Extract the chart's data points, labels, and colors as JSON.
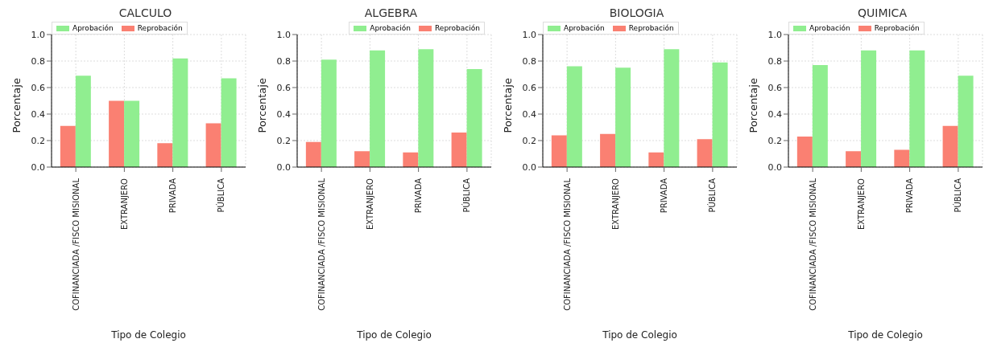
{
  "chart_data": [
    {
      "type": "bar",
      "title": "CALCULO",
      "xlabel": "Tipo de Colegio",
      "ylabel": "Porcentaje",
      "categories": [
        "COFINANCIADA /FISCO MISIONAL",
        "EXTRANJERO",
        "PRIVADA",
        "PÚBLICA"
      ],
      "series": [
        {
          "name": "Reprobación",
          "color": "#fa8072",
          "values": [
            0.31,
            0.5,
            0.18,
            0.33
          ]
        },
        {
          "name": "Aprobación",
          "color": "#90ee90",
          "values": [
            0.69,
            0.5,
            0.82,
            0.67
          ]
        }
      ],
      "ylim": [
        0,
        1
      ],
      "yticks": [
        {
          "value": 0,
          "label": "0.0"
        },
        {
          "value": 0.2,
          "label": "0.2"
        },
        {
          "value": 0.4,
          "label": "0.4"
        },
        {
          "value": 0.6,
          "label": "0.6"
        },
        {
          "value": 0.8,
          "label": "0.8"
        },
        {
          "value": 1,
          "label": "1.0"
        }
      ],
      "grid": true,
      "legend": "top left"
    },
    {
      "type": "bar",
      "title": "ALGEBRA",
      "xlabel": "Tipo de Colegio",
      "ylabel": "Porcentaje",
      "categories": [
        "COFINANCIADA /FISCO MISIONAL",
        "EXTRANJERO",
        "PRIVADA",
        "PÚBLICA"
      ],
      "series": [
        {
          "name": "Reprobación",
          "color": "#fa8072",
          "values": [
            0.19,
            0.12,
            0.11,
            0.26
          ]
        },
        {
          "name": "Aprobación",
          "color": "#90ee90",
          "values": [
            0.81,
            0.88,
            0.89,
            0.74
          ]
        }
      ],
      "ylim": [
        0,
        1
      ],
      "yticks": [
        {
          "value": 0,
          "label": "0.0"
        },
        {
          "value": 0.2,
          "label": "0.2"
        },
        {
          "value": 0.4,
          "label": "0.4"
        },
        {
          "value": 0.6,
          "label": "0.6"
        },
        {
          "value": 0.8,
          "label": "0.8"
        },
        {
          "value": 1,
          "label": "1.0"
        }
      ],
      "grid": true,
      "legend": "top right"
    },
    {
      "type": "bar",
      "title": "BIOLOGIA",
      "xlabel": "Tipo de Colegio",
      "ylabel": "Porcentaje",
      "categories": [
        "COFINANCIADA /FISCO MISIONAL",
        "EXTRANJERO",
        "PRIVADA",
        "PÚBLICA"
      ],
      "series": [
        {
          "name": "Reprobación",
          "color": "#fa8072",
          "values": [
            0.24,
            0.25,
            0.11,
            0.21
          ]
        },
        {
          "name": "Aprobación",
          "color": "#90ee90",
          "values": [
            0.76,
            0.75,
            0.89,
            0.79
          ]
        }
      ],
      "ylim": [
        0,
        1
      ],
      "yticks": [
        {
          "value": 0,
          "label": "0.0"
        },
        {
          "value": 0.2,
          "label": "0.2"
        },
        {
          "value": 0.4,
          "label": "0.4"
        },
        {
          "value": 0.6,
          "label": "0.6"
        },
        {
          "value": 0.8,
          "label": "0.8"
        },
        {
          "value": 1,
          "label": "1.0"
        }
      ],
      "grid": true,
      "legend": "top left"
    },
    {
      "type": "bar",
      "title": "QUIMICA",
      "xlabel": "Tipo de Colegio",
      "ylabel": "Porcentaje",
      "categories": [
        "COFINANCIADA /FISCO MISIONAL",
        "EXTRANJERO",
        "PRIVADA",
        "PÚBLICA"
      ],
      "series": [
        {
          "name": "Reprobación",
          "color": "#fa8072",
          "values": [
            0.23,
            0.12,
            0.13,
            0.31
          ]
        },
        {
          "name": "Aprobación",
          "color": "#90ee90",
          "values": [
            0.77,
            0.88,
            0.88,
            0.69
          ]
        }
      ],
      "ylim": [
        0,
        1
      ],
      "yticks": [
        {
          "value": 0,
          "label": "0.0"
        },
        {
          "value": 0.2,
          "label": "0.2"
        },
        {
          "value": 0.4,
          "label": "0.4"
        },
        {
          "value": 0.6,
          "label": "0.6"
        },
        {
          "value": 0.8,
          "label": "0.8"
        },
        {
          "value": 1,
          "label": "1.0"
        }
      ],
      "grid": true,
      "legend": "top left"
    }
  ]
}
